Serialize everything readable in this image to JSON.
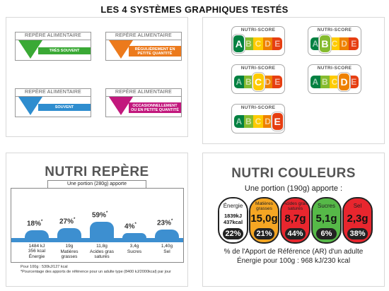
{
  "title": "LES 4 SYSTÈMES GRAPHIQUES TESTÉS",
  "repere_alimentaire": {
    "header": "REPÈRE ALIMENTAIRE",
    "items": [
      {
        "band": "TRÈS SOUVENT",
        "color": "#3aa935"
      },
      {
        "band": "RÉGULIÈREMENT EN PETITE QUANTITÉ",
        "color": "#ec7a1c"
      },
      {
        "band": "SOUVENT",
        "color": "#2e8dcf"
      },
      {
        "band": "OCCASIONNELLEMENT OU EN PETITE QUANTITÉ",
        "color": "#c2187d"
      }
    ]
  },
  "nutri_score": {
    "label": "NUTRI-SCORE",
    "letters": [
      "A",
      "B",
      "C",
      "D",
      "E"
    ],
    "colors": [
      "#038141",
      "#85bb2f",
      "#fecb02",
      "#ee8100",
      "#e63e11"
    ],
    "selected": [
      "A",
      "B",
      "C",
      "D",
      "E"
    ]
  },
  "nutri_repere": {
    "title": "NUTRI REPÈRE",
    "portion": "Une portion (280g) apporte",
    "items": [
      {
        "pct": "18",
        "value": "1484 kJ\n356 kcal",
        "name": "Énergie",
        "level": 0.18
      },
      {
        "pct": "27",
        "value": "19g",
        "name": "Matières grasses",
        "level": 0.27
      },
      {
        "pct": "59",
        "value": "11,8g",
        "name": "Acides gras saturés",
        "level": 0.59
      },
      {
        "pct": "4",
        "value": "3,4g",
        "name": "Sucres",
        "level": 0.04
      },
      {
        "pct": "23",
        "value": "1,40g",
        "name": "Sel",
        "level": 0.23
      }
    ],
    "pct_sign": "%",
    "foot1": "Pour 100g : 530kJ/127 kcal",
    "foot2": "*Pourcentage des apports de référence pour un adulte type (8400 kJ/2000kcal) par jour"
  },
  "nutri_couleurs": {
    "title": "NUTRI COULEURS",
    "portion": "Une portion (190g) apporte :",
    "items": [
      {
        "label": "Énergie",
        "value": "1839kJ 437kcal",
        "pct": "22%",
        "color": "#ffffff"
      },
      {
        "label": "Matières grasses",
        "value": "15,0g",
        "pct": "21%",
        "color": "#f5a623"
      },
      {
        "label": "Acides gras saturés",
        "value": "8,7g",
        "pct": "44%",
        "color": "#e8262e"
      },
      {
        "label": "Sucres",
        "value": "5,1g",
        "pct": "6%",
        "color": "#56b948"
      },
      {
        "label": "Sel",
        "value": "2,3g",
        "pct": "38%",
        "color": "#e8262e"
      }
    ],
    "foot1": "% de l'Apport de Référence (AR) d'un adulte",
    "foot2": "Énergie pour 100g : 968 kJ/230 kcal"
  }
}
